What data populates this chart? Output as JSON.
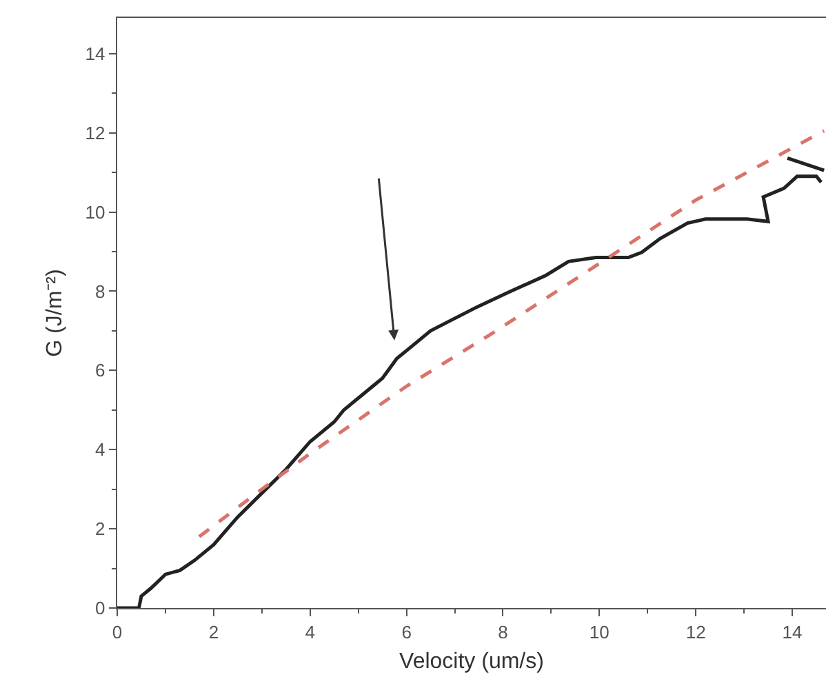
{
  "chart_data": {
    "type": "line",
    "xlabel": "Velocity (um/s)",
    "ylabel": "G (J/m⁻²)",
    "xlim": [
      0,
      14.7
    ],
    "xticks": [
      0,
      2,
      4,
      6,
      8,
      10,
      12,
      14
    ],
    "ylim": [
      0,
      14.9
    ],
    "yticks": [
      0,
      2,
      4,
      6,
      8,
      10,
      12,
      14
    ],
    "marker": "none",
    "series": [
      {
        "color": "#222222",
        "line_style": "solid",
        "x": [
          0,
          0.45,
          0.5,
          0.7,
          1,
          1.3,
          1.6,
          2,
          2.5,
          3,
          3.5,
          4,
          4.5,
          4.7,
          5,
          5.5,
          5.8,
          6,
          6.5,
          7.46,
          8.13,
          8.89,
          9.36,
          9.93,
          10.6,
          10.88,
          11.26,
          11.83,
          12.2,
          13.06,
          13.5,
          13.4,
          13.83,
          14.1,
          14.5,
          14.6,
          null,
          13.9,
          14.66
        ],
        "values": [
          0,
          0,
          0.3,
          0.5,
          0.85,
          0.95,
          1.2,
          1.6,
          2.3,
          2.9,
          3.5,
          4.2,
          4.7,
          5,
          5.3,
          5.8,
          6.3,
          6.5,
          7,
          7.6,
          7.98,
          8.4,
          8.75,
          8.85,
          8.85,
          8.98,
          9.33,
          9.72,
          9.82,
          9.82,
          9.76,
          10.38,
          10.6,
          10.9,
          10.9,
          10.75,
          null,
          11.36,
          11.05
        ]
      },
      {
        "color": "#d9736b",
        "line_style": "dashed",
        "x": [
          1.7,
          3,
          4,
          6,
          7.77,
          10,
          12,
          14.66
        ],
        "values": [
          1.8,
          3,
          3.9,
          5.6,
          6.93,
          8.7,
          10.3,
          12.05
        ]
      }
    ]
  }
}
